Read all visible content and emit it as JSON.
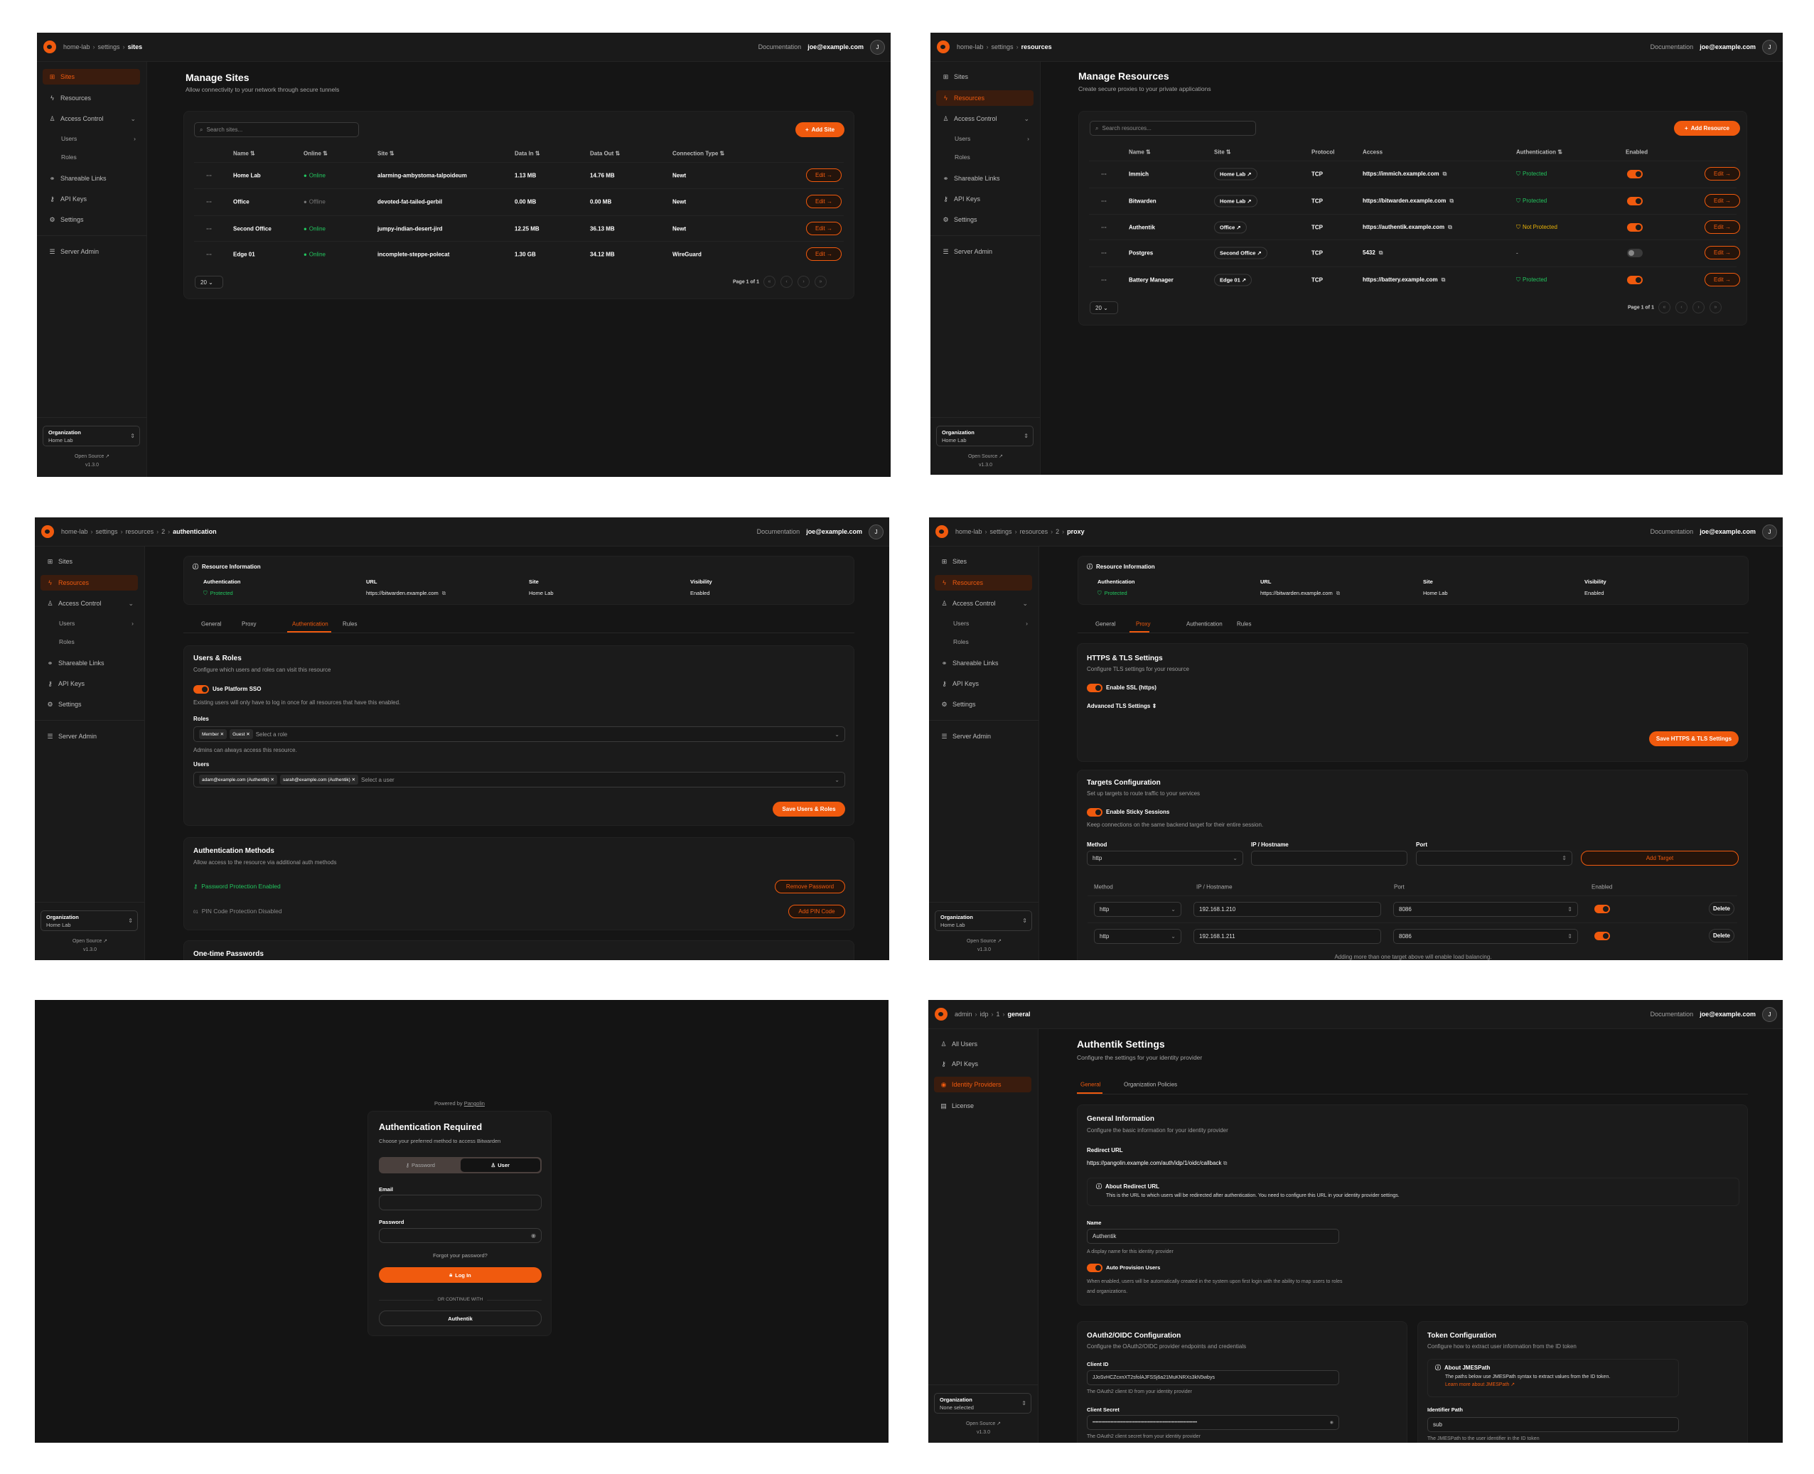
{
  "shared": {
    "documentation": "Documentation",
    "user_email": "joe@example.com",
    "avatar_initial": "J",
    "org_label": "Organization",
    "open_source": "Open Source ↗",
    "version": "v1.3.0",
    "accent": "#f05a0e",
    "org_sidebar": [
      {
        "label": "Sites",
        "icon": "sites-icon",
        "glyph": "⊞"
      },
      {
        "label": "Resources",
        "icon": "resources-icon",
        "glyph": "ϟ"
      },
      {
        "label": "Access Control",
        "icon": "access-control-icon",
        "glyph": "♙",
        "chevron": "⌄"
      },
      {
        "label": "Users",
        "sub": true,
        "chevron": "›"
      },
      {
        "label": "Roles",
        "sub": true
      },
      {
        "label": "Shareable Links",
        "icon": "link-icon",
        "glyph": "⚭"
      },
      {
        "label": "API Keys",
        "icon": "key-icon",
        "glyph": "⚷"
      },
      {
        "label": "Settings",
        "icon": "gear-icon",
        "glyph": "⚙"
      },
      {
        "label": "Server Admin",
        "icon": "server-icon",
        "glyph": "☰"
      }
    ],
    "resource_info": {
      "title": "Resource Information",
      "fields": [
        {
          "label": "Authentication",
          "value": "Protected"
        },
        {
          "label": "URL",
          "value": "https://bitwarden.example.com"
        },
        {
          "label": "Site",
          "value": "Home Lab"
        },
        {
          "label": "Visibility",
          "value": "Enabled"
        }
      ]
    },
    "resource_tabs": [
      "General",
      "Proxy",
      "Authentication",
      "Rules"
    ],
    "status_colors": {
      "online": "#22c55e",
      "offline": "#777777",
      "protected": "#22c55e",
      "not_protected": "#eab308"
    }
  },
  "sites_page": {
    "breadcrumb": [
      "home-lab",
      "settings",
      "sites"
    ],
    "active_nav": 0,
    "org_name": "Home Lab",
    "title": "Manage Sites",
    "subtitle": "Allow connectivity to your network through secure tunnels",
    "search_placeholder": "Search sites...",
    "add_label": "Add Site",
    "columns": [
      "Name ⇅",
      "Online ⇅",
      "Site ⇅",
      "Data In ⇅",
      "Data Out ⇅",
      "Connection Type ⇅"
    ],
    "rows": [
      {
        "name": "Home Lab",
        "online": "Online",
        "status": "online",
        "site": "alarming-ambystoma-talpoideum",
        "data_in": "1.13 MB",
        "data_out": "14.76 MB",
        "type": "Newt"
      },
      {
        "name": "Office",
        "online": "Offline",
        "status": "offline",
        "site": "devoted-fat-tailed-gerbil",
        "data_in": "0.00 MB",
        "data_out": "0.00 MB",
        "type": "Newt"
      },
      {
        "name": "Second Office",
        "online": "Online",
        "status": "online",
        "site": "jumpy-indian-desert-jird",
        "data_in": "12.25 MB",
        "data_out": "36.13 MB",
        "type": "Newt"
      },
      {
        "name": "Edge 01",
        "online": "Online",
        "status": "online",
        "site": "incomplete-steppe-polecat",
        "data_in": "1.30 GB",
        "data_out": "34.12 MB",
        "type": "WireGuard"
      }
    ],
    "edit_label": "Edit →",
    "page_size": "20 ⌄",
    "page_info": "Page 1 of 1"
  },
  "resources_page": {
    "breadcrumb": [
      "home-lab",
      "settings",
      "resources"
    ],
    "active_nav": 1,
    "org_name": "Home Lab",
    "title": "Manage Resources",
    "subtitle": "Create secure proxies to your private applications",
    "search_placeholder": "Search resources...",
    "add_label": "Add Resource",
    "columns": [
      "Name ⇅",
      "Site ⇅",
      "Protocol",
      "Access",
      "Authentication ⇅",
      "Enabled"
    ],
    "rows": [
      {
        "name": "Immich",
        "site": "Home Lab ↗",
        "protocol": "TCP",
        "access": "https://immich.example.com",
        "auth": "Protected",
        "auth_state": "protected",
        "enabled": true
      },
      {
        "name": "Bitwarden",
        "site": "Home Lab ↗",
        "protocol": "TCP",
        "access": "https://bitwarden.example.com",
        "auth": "Protected",
        "auth_state": "protected",
        "enabled": true
      },
      {
        "name": "Authentik",
        "site": "Office ↗",
        "protocol": "TCP",
        "access": "https://authentik.example.com",
        "auth": "Not Protected",
        "auth_state": "not_protected",
        "enabled": true
      },
      {
        "name": "Postgres",
        "site": "Second Office ↗",
        "protocol": "TCP",
        "access": "5432",
        "auth": "-",
        "auth_state": "none",
        "enabled": false
      },
      {
        "name": "Battery Manager",
        "site": "Edge 01 ↗",
        "protocol": "TCP",
        "access": "https://battery.example.com",
        "auth": "Protected",
        "auth_state": "protected",
        "enabled": true
      }
    ],
    "edit_label": "Edit →",
    "page_size": "20 ⌄",
    "page_info": "Page 1 of 1"
  },
  "auth_page": {
    "breadcrumb": [
      "home-lab",
      "settings",
      "resources",
      "2",
      "authentication"
    ],
    "active_nav": 1,
    "active_tab": 2,
    "org_name": "Home Lab",
    "users_roles": {
      "title": "Users & Roles",
      "desc": "Configure which users and roles can visit this resource",
      "sso_label": "Use Platform SSO",
      "sso_desc": "Existing users will only have to log in once for all resources that have this enabled.",
      "roles_label": "Roles",
      "roles": [
        "Member ✕",
        "Guest ✕"
      ],
      "roles_placeholder": "Select a role",
      "roles_hint": "Admins can always access this resource.",
      "users_label": "Users",
      "users": [
        "adam@example.com (Authentik) ✕",
        "sarah@example.com (Authentik) ✕"
      ],
      "users_placeholder": "Select a user",
      "save": "Save Users & Roles"
    },
    "auth_methods": {
      "title": "Authentication Methods",
      "desc": "Allow access to the resource via additional auth methods",
      "password_status": "Password Protection Enabled",
      "remove_password": "Remove Password",
      "pin_status": "PIN Code Protection Disabled",
      "add_pin": "Add PIN Code"
    },
    "otp_title": "One-time Passwords"
  },
  "proxy_page": {
    "breadcrumb": [
      "home-lab",
      "settings",
      "resources",
      "2",
      "proxy"
    ],
    "active_nav": 1,
    "active_tab": 1,
    "org_name": "Home Lab",
    "https": {
      "title": "HTTPS & TLS Settings",
      "desc": "Configure TLS settings for your resource",
      "ssl_label": "Enable SSL (https)",
      "advanced": "Advanced TLS Settings ⇕",
      "save": "Save HTTPS & TLS Settings"
    },
    "targets": {
      "title": "Targets Configuration",
      "desc": "Set up targets to route traffic to your services",
      "sticky_label": "Enable Sticky Sessions",
      "sticky_desc": "Keep connections on the same backend target for their entire session.",
      "form_labels": [
        "Method",
        "IP / Hostname",
        "Port"
      ],
      "method_value": "http",
      "add_label": "Add Target",
      "table_headers": [
        "Method",
        "IP / Hostname",
        "Port",
        "Enabled"
      ],
      "rows": [
        {
          "method": "http",
          "ip": "192.168.1.210",
          "port": "8086",
          "enabled": true
        },
        {
          "method": "http",
          "ip": "192.168.1.211",
          "port": "8086",
          "enabled": true
        }
      ],
      "delete_label": "Delete",
      "footnote": "Adding more than one target above will enable load balancing."
    }
  },
  "login_page": {
    "powered_by": "Powered by",
    "brand": "Pangolin",
    "title": "Authentication Required",
    "subtitle": "Choose your preferred method to access Bitwarden",
    "methods": [
      "Password",
      "User"
    ],
    "active_method": 1,
    "email_label": "Email",
    "password_label": "Password",
    "forgot": "Forgot your password?",
    "login": "Log In",
    "or": "OR CONTINUE WITH",
    "idp": "Authentik"
  },
  "idp_page": {
    "breadcrumb": [
      "admin",
      "idp",
      "1",
      "general"
    ],
    "sidebar": [
      {
        "label": "All Users",
        "icon": "users-icon",
        "glyph": "♙"
      },
      {
        "label": "API Keys",
        "icon": "key-icon",
        "glyph": "⚷"
      },
      {
        "label": "Identity Providers",
        "icon": "fingerprint-icon",
        "glyph": "◉"
      },
      {
        "label": "License",
        "icon": "license-icon",
        "glyph": "▤"
      }
    ],
    "active_nav": 2,
    "org_name": "None selected",
    "title": "Authentik Settings",
    "subtitle": "Configure the settings for your identity provider",
    "tabs": [
      "General",
      "Organization Policies"
    ],
    "general": {
      "title": "General Information",
      "desc": "Configure the basic information for your identity provider",
      "redirect_label": "Redirect URL",
      "redirect_url": "https://pangolin.example.com/auth/idp/1/oidc/callback",
      "about_title": "About Redirect URL",
      "about_text": "This is the URL to which users will be redirected after authentication. You need to configure this URL in your identity provider settings.",
      "name_label": "Name",
      "name_value": "Authentik",
      "name_hint": "A display name for this identity provider",
      "auto_label": "Auto Provision Users",
      "auto_desc": "When enabled, users will be automatically created in the system upon first login with the ability to map users to roles and organizations."
    },
    "oauth": {
      "title": "OAuth2/OIDC Configuration",
      "desc": "Configure the OAuth2/OIDC provider endpoints and credentials",
      "client_id_label": "Client ID",
      "client_id": "JJoSvHCZcxnXT2sfolAJFSSj6a21MuKNRXs3kN5wbys",
      "client_id_hint": "The OAuth2 client ID from your identity provider",
      "secret_label": "Client Secret",
      "secret": "••••••••••••••••••••••••••••••••••••••••••••••••••••••••••••••••••••••",
      "secret_hint": "The OAuth2 client secret from your identity provider"
    },
    "token": {
      "title": "Token Configuration",
      "desc": "Configure how to extract user information from the ID token",
      "about_title": "About JMESPath",
      "about_text": "The paths below use JMESPath syntax to extract values from the ID token.",
      "learn_more": "Learn more about JMESPath ↗",
      "id_path_label": "Identifier Path",
      "id_path": "sub",
      "id_path_hint": "The JMESPath to the user identifier in the ID token"
    }
  }
}
